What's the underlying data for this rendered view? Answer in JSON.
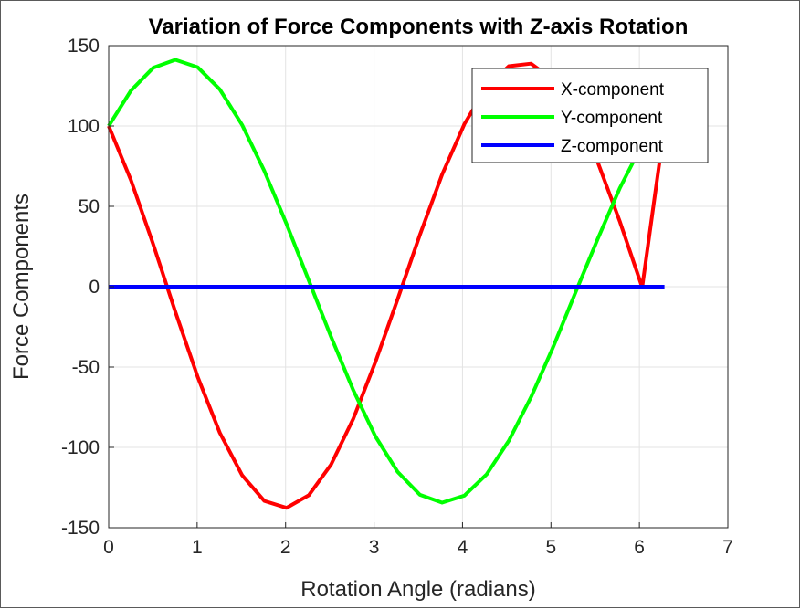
{
  "chart_data": {
    "type": "line",
    "title": "Variation of Force Components with Z-axis Rotation",
    "xlabel": "Rotation Angle (radians)",
    "ylabel": "Force Components",
    "xlim": [
      0,
      7
    ],
    "ylim": [
      -150,
      150
    ],
    "xticks": [
      "0",
      "1",
      "2",
      "3",
      "4",
      "5",
      "6",
      "7"
    ],
    "yticks": [
      "-150",
      "-100",
      "-50",
      "0",
      "50",
      "100",
      "150"
    ],
    "grid": true,
    "legend_position": "top-right",
    "x": [
      0,
      0.2513,
      0.5027,
      0.754,
      1.0053,
      1.2566,
      1.508,
      1.7593,
      2.0106,
      2.262,
      2.5133,
      2.7646,
      3.0159,
      3.2673,
      3.5186,
      3.7699,
      4.0212,
      4.2726,
      4.5239,
      4.7752,
      5.0265,
      5.2779,
      5.5292,
      5.7805,
      6.0319,
      6.2832
    ],
    "series": [
      {
        "name": "X-component",
        "color": "#ff0000",
        "values": [
          100,
          66.4,
          26.5,
          -15.6,
          -56.0,
          -90.9,
          -117.3,
          -133.3,
          -137.6,
          -129.8,
          -110.8,
          -82.3,
          -46.8,
          -7.6,
          32.3,
          69.8,
          101.2,
          124.3,
          137.2,
          138.8,
          128.7,
          107.7,
          77.5,
          40.3,
          -0.4,
          100
        ]
      },
      {
        "name": "Y-component",
        "color": "#00ff00",
        "values": [
          100,
          122.0,
          136.2,
          141.2,
          136.6,
          122.8,
          100.7,
          72.1,
          39.1,
          3.9,
          -31.0,
          -64.4,
          -93.2,
          -115.3,
          -129.5,
          -134.4,
          -130.0,
          -116.8,
          -95.8,
          -68.7,
          -37.3,
          -3.5,
          29.7,
          61.6,
          88.6,
          100
        ]
      },
      {
        "name": "Z-component",
        "color": "#0000ff",
        "values": [
          0,
          0,
          0,
          0,
          0,
          0,
          0,
          0,
          0,
          0,
          0,
          0,
          0,
          0,
          0,
          0,
          0,
          0,
          0,
          0,
          0,
          0,
          0,
          0,
          0,
          0
        ]
      }
    ]
  }
}
